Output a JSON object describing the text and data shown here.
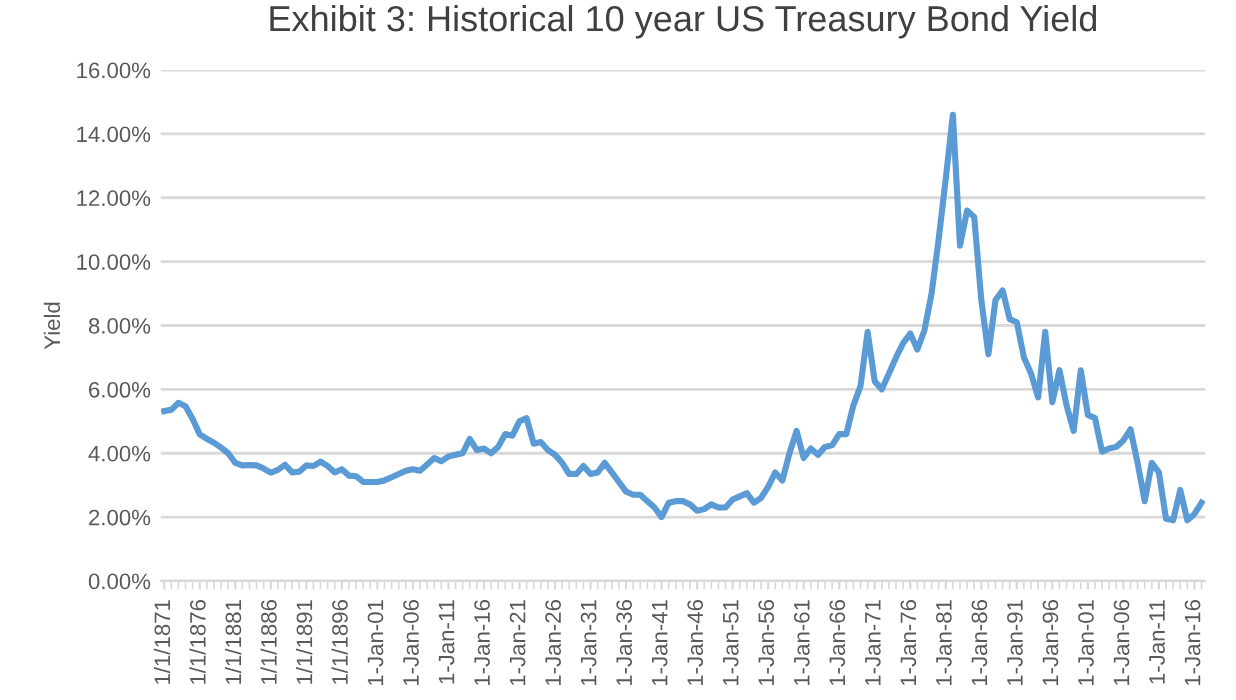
{
  "chart_data": {
    "type": "line",
    "title": "Exhibit 3: Historical 10 year US Treasury Bond Yield",
    "ylabel": "Yield",
    "categories": [
      "1/1/1871",
      null,
      null,
      null,
      null,
      "1/1/1876",
      null,
      null,
      null,
      null,
      "1/1/1881",
      null,
      null,
      null,
      null,
      "1/1/1886",
      null,
      null,
      null,
      null,
      "1/1/1891",
      null,
      null,
      null,
      null,
      "1/1/1896",
      null,
      null,
      null,
      null,
      "1-Jan-01",
      null,
      null,
      null,
      null,
      "1-Jan-06",
      null,
      null,
      null,
      null,
      "1-Jan-11",
      null,
      null,
      null,
      null,
      "1-Jan-16",
      null,
      null,
      null,
      null,
      "1-Jan-21",
      null,
      null,
      null,
      null,
      "1-Jan-26",
      null,
      null,
      null,
      null,
      "1-Jan-31",
      null,
      null,
      null,
      null,
      "1-Jan-36",
      null,
      null,
      null,
      null,
      "1-Jan-41",
      null,
      null,
      null,
      null,
      "1-Jan-46",
      null,
      null,
      null,
      null,
      "1-Jan-51",
      null,
      null,
      null,
      null,
      "1-Jan-56",
      null,
      null,
      null,
      null,
      "1-Jan-61",
      null,
      null,
      null,
      null,
      "1-Jan-66",
      null,
      null,
      null,
      null,
      "1-Jan-71",
      null,
      null,
      null,
      null,
      "1-Jan-76",
      null,
      null,
      null,
      null,
      "1-Jan-81",
      null,
      null,
      null,
      null,
      "1-Jan-86",
      null,
      null,
      null,
      null,
      "1-Jan-91",
      null,
      null,
      null,
      null,
      "1-Jan-96",
      null,
      null,
      null,
      null,
      "1-Jan-01",
      null,
      null,
      null,
      null,
      "1-Jan-06",
      null,
      null,
      null,
      null,
      "1-Jan-11",
      null,
      null,
      null,
      null,
      "1-Jan-16",
      null
    ],
    "series": [
      {
        "color": "#5b9bd5",
        "values": [
          5.32,
          5.36,
          5.58,
          5.47,
          5.07,
          4.59,
          4.45,
          4.33,
          4.18,
          4.0,
          3.7,
          3.62,
          3.63,
          3.62,
          3.52,
          3.39,
          3.48,
          3.64,
          3.4,
          3.42,
          3.62,
          3.6,
          3.74,
          3.6,
          3.4,
          3.5,
          3.3,
          3.28,
          3.1,
          3.1,
          3.1,
          3.15,
          3.25,
          3.35,
          3.45,
          3.5,
          3.45,
          3.65,
          3.85,
          3.75,
          3.9,
          3.95,
          4.0,
          4.45,
          4.1,
          4.15,
          4.0,
          4.2,
          4.6,
          4.55,
          5.0,
          5.1,
          4.3,
          4.35,
          4.1,
          3.95,
          3.7,
          3.35,
          3.35,
          3.6,
          3.35,
          3.4,
          3.7,
          3.4,
          3.1,
          2.8,
          2.7,
          2.7,
          2.5,
          2.3,
          2.0,
          2.45,
          2.5,
          2.5,
          2.4,
          2.2,
          2.25,
          2.4,
          2.3,
          2.3,
          2.55,
          2.65,
          2.75,
          2.45,
          2.6,
          2.95,
          3.4,
          3.15,
          4.0,
          4.7,
          3.85,
          4.15,
          3.95,
          4.2,
          4.25,
          4.6,
          4.6,
          5.5,
          6.1,
          7.8,
          6.25,
          6.0,
          6.5,
          7.0,
          7.45,
          7.75,
          7.25,
          7.85,
          9.0,
          10.7,
          12.6,
          14.6,
          10.5,
          11.6,
          11.4,
          8.8,
          7.1,
          8.8,
          9.1,
          8.2,
          8.1,
          7.0,
          6.5,
          5.75,
          7.8,
          5.6,
          6.6,
          5.5,
          4.7,
          6.6,
          5.2,
          5.1,
          4.05,
          4.15,
          4.2,
          4.4,
          4.75,
          3.7,
          2.5,
          3.7,
          3.4,
          1.95,
          1.9,
          2.85,
          1.9,
          2.1,
          2.45
        ]
      }
    ],
    "ylim": [
      0,
      16
    ],
    "yticks": [
      {
        "value": 0,
        "label": "0.00%"
      },
      {
        "value": 2,
        "label": "2.00%"
      },
      {
        "value": 4,
        "label": "4.00%"
      },
      {
        "value": 6,
        "label": "6.00%"
      },
      {
        "value": 8,
        "label": "8.00%"
      },
      {
        "value": 10,
        "label": "10.00%"
      },
      {
        "value": 12,
        "label": "12.00%"
      },
      {
        "value": 14,
        "label": "14.00%"
      },
      {
        "value": 16,
        "label": "16.00%"
      }
    ],
    "grid": "y",
    "line_style": "solid",
    "marker": "none"
  }
}
